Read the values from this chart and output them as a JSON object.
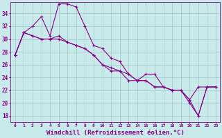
{
  "background_color": "#c8eaea",
  "grid_color": "#aacccc",
  "line_color": "#880088",
  "marker": "+",
  "xlabel": "Windchill (Refroidissement éolien,°C)",
  "xlabel_fontsize": 6.5,
  "xticks": [
    0,
    1,
    2,
    3,
    4,
    5,
    6,
    7,
    8,
    9,
    10,
    11,
    12,
    13,
    14,
    15,
    16,
    17,
    18,
    19,
    20,
    21,
    22,
    23
  ],
  "yticks": [
    18,
    20,
    22,
    24,
    26,
    28,
    30,
    32,
    34
  ],
  "xlim": [
    -0.5,
    23.5
  ],
  "ylim": [
    17.0,
    35.8
  ],
  "series": [
    [
      27.5,
      31.0,
      32.0,
      33.5,
      30.5,
      35.5,
      35.5,
      35.0,
      32.0,
      29.0,
      28.5,
      27.0,
      26.5,
      24.5,
      23.5,
      24.5,
      24.5,
      22.5,
      22.0,
      22.0,
      20.5,
      22.5,
      22.5,
      22.5
    ],
    [
      27.5,
      31.0,
      30.5,
      30.0,
      30.0,
      30.5,
      29.5,
      29.0,
      28.5,
      27.5,
      26.0,
      25.5,
      25.0,
      24.5,
      23.5,
      23.5,
      22.5,
      22.5,
      22.0,
      22.0,
      20.0,
      18.0,
      22.5,
      22.5
    ],
    [
      27.5,
      31.0,
      30.5,
      30.0,
      30.0,
      30.0,
      29.5,
      29.0,
      28.5,
      27.5,
      26.0,
      25.0,
      25.0,
      23.5,
      23.5,
      23.5,
      22.5,
      22.5,
      22.0,
      22.0,
      20.5,
      18.0,
      22.5,
      22.5
    ]
  ]
}
